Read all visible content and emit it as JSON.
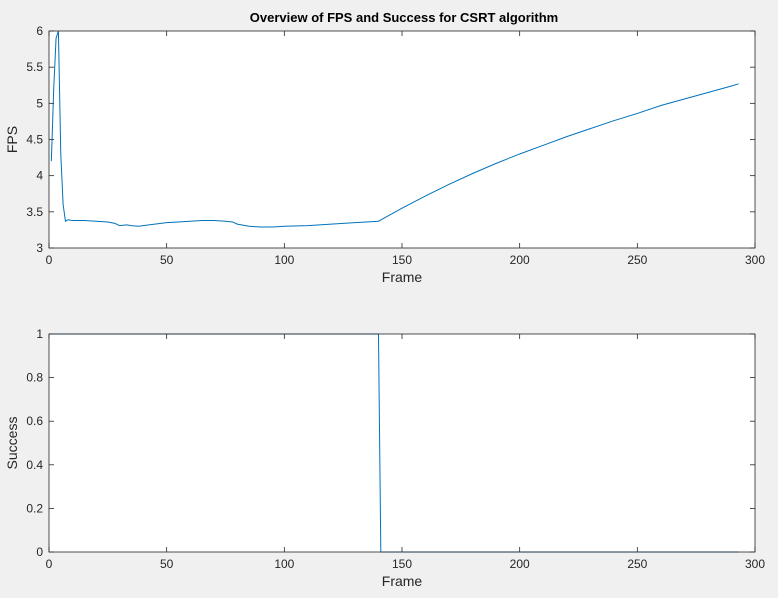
{
  "chart_data": [
    {
      "type": "line",
      "title": "Overview of FPS and Success for CSRT algorithm",
      "xlabel": "Frame",
      "ylabel": "FPS",
      "xlim": [
        0,
        300
      ],
      "ylim": [
        3,
        6
      ],
      "xticks": [
        0,
        50,
        100,
        150,
        200,
        250,
        300
      ],
      "yticks": [
        3,
        3.5,
        4,
        4.5,
        5,
        5.5,
        6
      ],
      "grid": false,
      "color": "#0072bd",
      "x": [
        1,
        2,
        3,
        4,
        5,
        6,
        7,
        8,
        10,
        15,
        20,
        25,
        28,
        30,
        33,
        35,
        38,
        40,
        45,
        50,
        55,
        60,
        65,
        70,
        75,
        78,
        80,
        85,
        90,
        95,
        100,
        110,
        120,
        130,
        135,
        140,
        150,
        160,
        170,
        180,
        190,
        200,
        210,
        220,
        230,
        240,
        250,
        260,
        270,
        280,
        290,
        293
      ],
      "y": [
        4.2,
        5.2,
        5.9,
        6.0,
        4.3,
        3.6,
        3.37,
        3.39,
        3.38,
        3.38,
        3.37,
        3.36,
        3.34,
        3.31,
        3.32,
        3.31,
        3.3,
        3.31,
        3.33,
        3.35,
        3.36,
        3.37,
        3.38,
        3.38,
        3.37,
        3.36,
        3.33,
        3.3,
        3.29,
        3.29,
        3.3,
        3.31,
        3.33,
        3.35,
        3.36,
        3.37,
        3.55,
        3.72,
        3.88,
        4.03,
        4.17,
        4.3,
        4.42,
        4.54,
        4.65,
        4.76,
        4.86,
        4.97,
        5.06,
        5.15,
        5.24,
        5.27
      ]
    },
    {
      "type": "line",
      "title": "",
      "xlabel": "Frame",
      "ylabel": "Success",
      "xlim": [
        0,
        300
      ],
      "ylim": [
        0,
        1
      ],
      "xticks": [
        0,
        50,
        100,
        150,
        200,
        250,
        300
      ],
      "yticks": [
        0,
        0.2,
        0.4,
        0.6,
        0.8,
        1
      ],
      "grid": false,
      "color": "#0072bd",
      "x": [
        1,
        140,
        141,
        293
      ],
      "y": [
        1,
        1,
        0,
        0
      ]
    }
  ]
}
